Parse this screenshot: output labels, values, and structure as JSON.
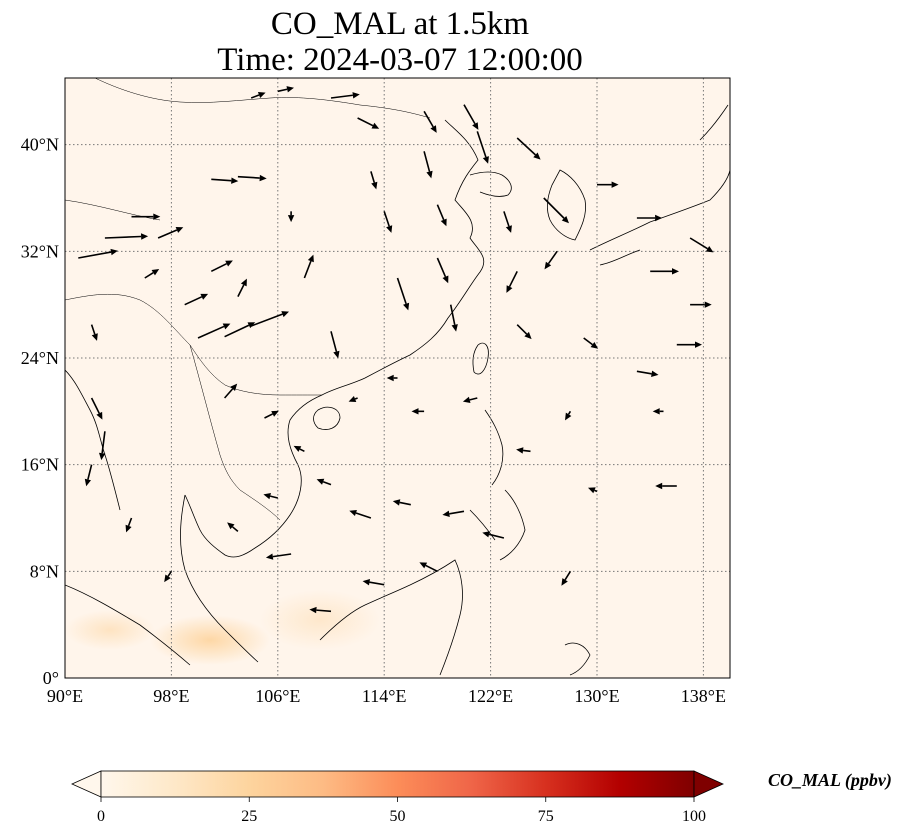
{
  "title_line_1": "CO_MAL at 1.5km",
  "title_line_2": "Time: 2024-03-07 12:00:00",
  "map": {
    "extent": {
      "lon_min": 90,
      "lon_max": 140,
      "lat_min": 0,
      "lat_max": 45
    },
    "lon_ticks": [
      {
        "value": 90,
        "label": "90°E"
      },
      {
        "value": 98,
        "label": "98°E"
      },
      {
        "value": 106,
        "label": "106°E"
      },
      {
        "value": 114,
        "label": "114°E"
      },
      {
        "value": 122,
        "label": "122°E"
      },
      {
        "value": 130,
        "label": "130°E"
      },
      {
        "value": 138,
        "label": "138°E"
      }
    ],
    "lat_ticks": [
      {
        "value": 0,
        "label": "0°"
      },
      {
        "value": 8,
        "label": "8°N"
      },
      {
        "value": 16,
        "label": "16°N"
      },
      {
        "value": 24,
        "label": "24°N"
      },
      {
        "value": 32,
        "label": "32°N"
      },
      {
        "value": 40,
        "label": "40°N"
      }
    ],
    "gridlines": true,
    "background_color": "#fff5eb",
    "coastline_color": "#000000",
    "arrow_color": "#000000",
    "wind_vectors": [
      {
        "lon": 91,
        "lat": 31.5,
        "u": 2.2,
        "v": 0.4
      },
      {
        "lon": 93,
        "lat": 33.0,
        "u": 2.4,
        "v": 0.1
      },
      {
        "lon": 95,
        "lat": 34.6,
        "u": 1.6,
        "v": 0.0
      },
      {
        "lon": 96,
        "lat": 30.0,
        "u": 0.8,
        "v": 0.5
      },
      {
        "lon": 97,
        "lat": 33.0,
        "u": 1.4,
        "v": 0.6
      },
      {
        "lon": 99,
        "lat": 28.0,
        "u": 1.3,
        "v": 0.6
      },
      {
        "lon": 100,
        "lat": 25.5,
        "u": 1.8,
        "v": 0.8
      },
      {
        "lon": 102,
        "lat": 25.6,
        "u": 1.7,
        "v": 0.8
      },
      {
        "lon": 104,
        "lat": 26.4,
        "u": 2.1,
        "v": 0.8
      },
      {
        "lon": 101,
        "lat": 30.5,
        "u": 1.2,
        "v": 0.6
      },
      {
        "lon": 103,
        "lat": 28.6,
        "u": 0.5,
        "v": 1.0
      },
      {
        "lon": 101,
        "lat": 37.4,
        "u": 1.5,
        "v": -0.1
      },
      {
        "lon": 103,
        "lat": 37.6,
        "u": 1.6,
        "v": -0.1
      },
      {
        "lon": 104,
        "lat": 43.5,
        "u": 0.8,
        "v": 0.3
      },
      {
        "lon": 106,
        "lat": 44.0,
        "u": 0.9,
        "v": 0.2
      },
      {
        "lon": 110,
        "lat": 43.5,
        "u": 1.6,
        "v": 0.2
      },
      {
        "lon": 112,
        "lat": 42.0,
        "u": 1.2,
        "v": -0.6
      },
      {
        "lon": 113,
        "lat": 38.0,
        "u": 0.3,
        "v": -1.0
      },
      {
        "lon": 114,
        "lat": 35.0,
        "u": 0.4,
        "v": -1.2
      },
      {
        "lon": 117,
        "lat": 42.5,
        "u": 0.7,
        "v": -1.2
      },
      {
        "lon": 117,
        "lat": 39.5,
        "u": 0.4,
        "v": -1.5
      },
      {
        "lon": 118,
        "lat": 35.5,
        "u": 0.5,
        "v": -1.2
      },
      {
        "lon": 115,
        "lat": 30.0,
        "u": 0.6,
        "v": -1.8
      },
      {
        "lon": 118,
        "lat": 31.5,
        "u": 0.6,
        "v": -1.4
      },
      {
        "lon": 119,
        "lat": 28.0,
        "u": 0.3,
        "v": -1.5
      },
      {
        "lon": 120,
        "lat": 43.0,
        "u": 0.8,
        "v": -1.4
      },
      {
        "lon": 121,
        "lat": 41.0,
        "u": 0.6,
        "v": -1.8
      },
      {
        "lon": 124,
        "lat": 40.5,
        "u": 1.3,
        "v": -1.2
      },
      {
        "lon": 123,
        "lat": 35.0,
        "u": 0.4,
        "v": -1.2
      },
      {
        "lon": 124,
        "lat": 30.5,
        "u": -0.6,
        "v": -1.2
      },
      {
        "lon": 126,
        "lat": 36.0,
        "u": 1.4,
        "v": -1.4
      },
      {
        "lon": 127,
        "lat": 32.0,
        "u": -0.7,
        "v": -1.0
      },
      {
        "lon": 124,
        "lat": 26.5,
        "u": 0.8,
        "v": -0.8
      },
      {
        "lon": 130,
        "lat": 37.0,
        "u": 1.2,
        "v": 0.0
      },
      {
        "lon": 133,
        "lat": 34.5,
        "u": 1.4,
        "v": 0.0
      },
      {
        "lon": 134,
        "lat": 30.5,
        "u": 1.6,
        "v": 0.0
      },
      {
        "lon": 137,
        "lat": 33.0,
        "u": 1.3,
        "v": -0.8
      },
      {
        "lon": 137,
        "lat": 28.0,
        "u": 1.2,
        "v": 0.0
      },
      {
        "lon": 136,
        "lat": 25.0,
        "u": 1.4,
        "v": 0.0
      },
      {
        "lon": 133,
        "lat": 23.0,
        "u": 1.2,
        "v": -0.2
      },
      {
        "lon": 129,
        "lat": 25.5,
        "u": 0.8,
        "v": -0.6
      },
      {
        "lon": 128,
        "lat": 20.0,
        "u": -0.3,
        "v": -0.5
      },
      {
        "lon": 125,
        "lat": 17.0,
        "u": -0.8,
        "v": 0.1
      },
      {
        "lon": 121,
        "lat": 21.0,
        "u": -0.8,
        "v": -0.2
      },
      {
        "lon": 117,
        "lat": 20.0,
        "u": -0.7,
        "v": 0.0
      },
      {
        "lon": 115,
        "lat": 22.5,
        "u": -0.6,
        "v": 0.0
      },
      {
        "lon": 112,
        "lat": 21.0,
        "u": -0.5,
        "v": -0.2
      },
      {
        "lon": 110,
        "lat": 14.5,
        "u": -0.8,
        "v": 0.3
      },
      {
        "lon": 113,
        "lat": 12.0,
        "u": -1.2,
        "v": 0.4
      },
      {
        "lon": 116,
        "lat": 13.0,
        "u": -1.0,
        "v": 0.2
      },
      {
        "lon": 120,
        "lat": 12.5,
        "u": -1.2,
        "v": -0.2
      },
      {
        "lon": 123,
        "lat": 10.5,
        "u": -1.2,
        "v": 0.3
      },
      {
        "lon": 118,
        "lat": 8.0,
        "u": -1.0,
        "v": 0.5
      },
      {
        "lon": 114,
        "lat": 7.0,
        "u": -1.2,
        "v": 0.2
      },
      {
        "lon": 110,
        "lat": 5.0,
        "u": -1.2,
        "v": 0.1
      },
      {
        "lon": 107,
        "lat": 9.3,
        "u": -1.4,
        "v": -0.2
      },
      {
        "lon": 106,
        "lat": 13.5,
        "u": -0.8,
        "v": 0.2
      },
      {
        "lon": 103,
        "lat": 11.0,
        "u": -0.6,
        "v": 0.5
      },
      {
        "lon": 98,
        "lat": 8.0,
        "u": -0.4,
        "v": -0.6
      },
      {
        "lon": 95,
        "lat": 12.0,
        "u": -0.3,
        "v": -0.8
      },
      {
        "lon": 92,
        "lat": 16.0,
        "u": -0.3,
        "v": -1.2
      },
      {
        "lon": 92,
        "lat": 21.0,
        "u": 0.6,
        "v": -1.2
      },
      {
        "lon": 93,
        "lat": 18.5,
        "u": -0.2,
        "v": -1.6
      },
      {
        "lon": 92,
        "lat": 26.5,
        "u": 0.3,
        "v": -0.9
      },
      {
        "lon": 128,
        "lat": 8.0,
        "u": -0.5,
        "v": -0.8
      },
      {
        "lon": 130,
        "lat": 14.0,
        "u": -0.5,
        "v": 0.2
      },
      {
        "lon": 136,
        "lat": 14.4,
        "u": -1.2,
        "v": 0.0
      },
      {
        "lon": 135,
        "lat": 20.0,
        "u": -0.6,
        "v": 0.0
      },
      {
        "lon": 102,
        "lat": 21.0,
        "u": 0.7,
        "v": 0.8
      },
      {
        "lon": 105,
        "lat": 19.5,
        "u": 0.8,
        "v": 0.4
      },
      {
        "lon": 108,
        "lat": 17.0,
        "u": -0.6,
        "v": 0.3
      },
      {
        "lon": 110,
        "lat": 26.0,
        "u": 0.4,
        "v": -1.5
      },
      {
        "lon": 108,
        "lat": 30.0,
        "u": 0.5,
        "v": 1.3
      },
      {
        "lon": 107,
        "lat": 35.0,
        "u": 0.0,
        "v": -0.6
      }
    ]
  },
  "colorbar": {
    "label": "CO_MAL (ppbv)",
    "min": 0,
    "max": 100,
    "colormap": "OrRd",
    "extend": "both",
    "colors": [
      "#fff7ec",
      "#fee8c8",
      "#fdd49e",
      "#fdbb84",
      "#fc8d59",
      "#ef6548",
      "#d7301f",
      "#b30000",
      "#7f0000"
    ],
    "ticks": [
      {
        "value": 0,
        "label": "0"
      },
      {
        "value": 25,
        "label": "25"
      },
      {
        "value": 50,
        "label": "50"
      },
      {
        "value": 75,
        "label": "75"
      },
      {
        "value": 100,
        "label": "100"
      }
    ]
  }
}
